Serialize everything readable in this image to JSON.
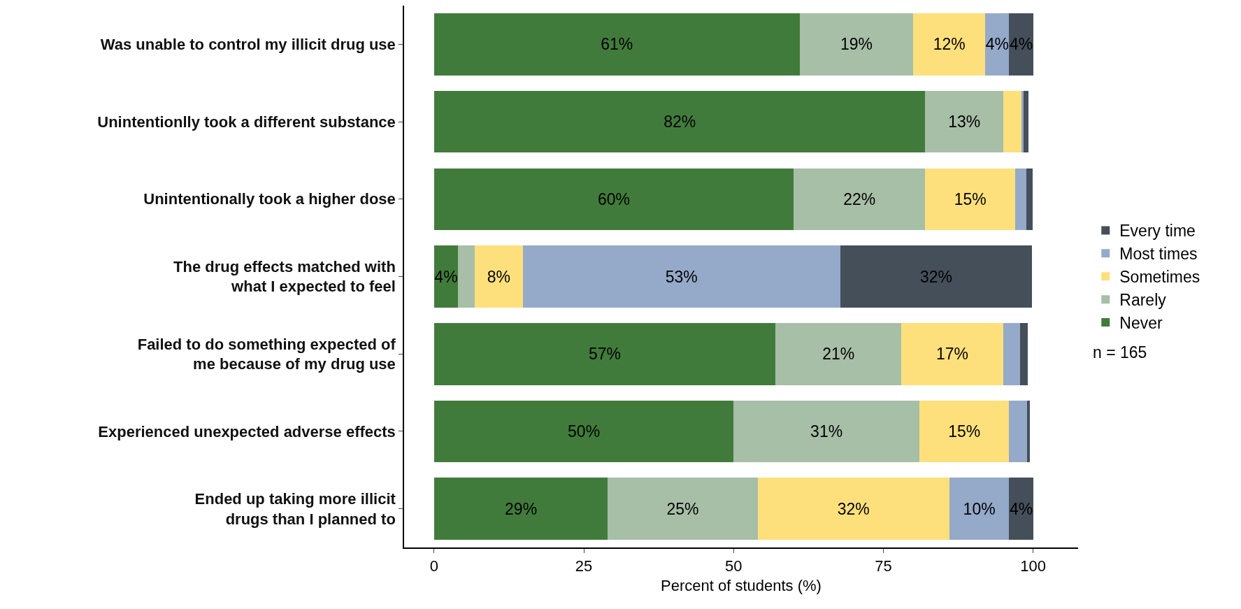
{
  "chart_data": {
    "type": "bar",
    "orientation": "horizontal",
    "stacked": true,
    "categories": [
      "Was unable to control my illicit drug use",
      "Unintentionlly took a different substance",
      "Unintentionally took a higher dose",
      "The drug effects matched with\nwhat I expected to feel",
      "Failed to do something expected of\nme because of my drug use",
      "Experienced unexpected adverse effects",
      "Ended up taking more illicit\ndrugs than I planned to"
    ],
    "series": [
      {
        "name": "Never",
        "color": "#417b3b",
        "values": [
          61,
          82,
          60,
          4,
          57,
          50,
          29
        ],
        "value_labels": [
          "61%",
          "82%",
          "60%",
          "4%",
          "57%",
          "50%",
          "29%"
        ]
      },
      {
        "name": "Rarely",
        "color": "#a7bea7",
        "values": [
          19,
          13,
          22,
          2.8,
          21,
          31,
          25
        ],
        "value_labels": [
          "19%",
          "13%",
          "22%",
          null,
          "21%",
          "31%",
          "25%"
        ]
      },
      {
        "name": "Sometimes",
        "color": "#fde07b",
        "values": [
          12,
          3.0,
          15,
          8,
          17,
          15,
          32
        ],
        "value_labels": [
          "12%",
          null,
          "15%",
          "8%",
          "17%",
          "15%",
          "32%"
        ]
      },
      {
        "name": "Most times",
        "color": "#95a9c9",
        "values": [
          4,
          0.4,
          1.9,
          53,
          2.8,
          3.0,
          10
        ],
        "value_labels": [
          "4%",
          null,
          null,
          "53%",
          null,
          null,
          "10%"
        ]
      },
      {
        "name": "Every time",
        "color": "#454f5a",
        "values": [
          4,
          0.8,
          1.0,
          32,
          1.3,
          0.4,
          4
        ],
        "value_labels": [
          "4%",
          null,
          null,
          "32%",
          null,
          null,
          "4%"
        ]
      }
    ],
    "xlabel": "Percent of students (%)",
    "xlim": [
      -5,
      107.5
    ],
    "xticks": [
      0,
      25,
      50,
      75,
      100
    ],
    "grid": false,
    "legend": "right",
    "annotations": [
      "n = 165"
    ]
  }
}
